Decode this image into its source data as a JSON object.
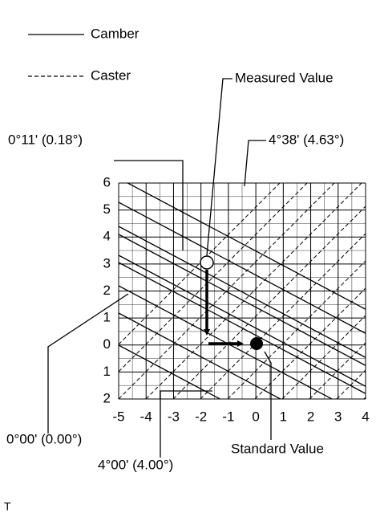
{
  "legend": [
    {
      "label": "Camber"
    },
    {
      "label": "Caster"
    }
  ],
  "annotations": {
    "measured": "Measured Value",
    "standard": "Standard Value",
    "top_right": "4°38' (4.63°)",
    "top_left": "0°11' (0.18°)",
    "bottom_left": "0°00' (0.00°)",
    "bottom_mid": "4°00' (4.00°)"
  },
  "x_axis": [
    "-5",
    "-4",
    "-3",
    "-2",
    "-1",
    "0",
    "1",
    "2",
    "3",
    "4"
  ],
  "y_axis": [
    "6",
    "5",
    "4",
    "3",
    "2",
    "1",
    "0",
    "1",
    "2"
  ],
  "footer": "T"
}
